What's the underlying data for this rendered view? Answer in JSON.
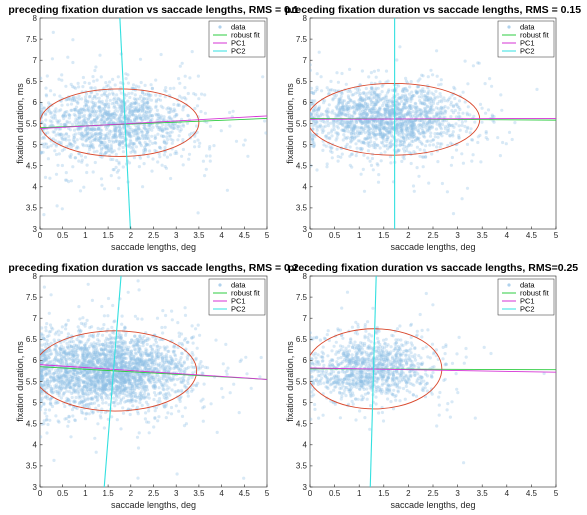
{
  "chart_data": [
    {
      "type": "scatter",
      "title": "preceding fixation duration vs saccade lengths, RMS = 0.1",
      "xlabel": "saccade lengths, deg",
      "ylabel": "fixation duration, ms",
      "xlim": [
        0,
        5
      ],
      "ylim": [
        3,
        8
      ],
      "xticks": [
        "0",
        "0.5",
        "1",
        "1.5",
        "2",
        "2.5",
        "3",
        "3.5",
        "4",
        "4.5",
        "5"
      ],
      "yticks": [
        "3",
        "3.5",
        "4",
        "4.5",
        "5",
        "5.5",
        "6",
        "6.5",
        "7",
        "7.5",
        "8"
      ],
      "grid": false,
      "legend": "top-right",
      "legend_entries": [
        "data",
        "robust fit",
        "PC1",
        "PC2"
      ],
      "cloud": {
        "cx": 1.7,
        "cy": 5.5,
        "sx": 0.85,
        "sy": 0.45,
        "n": 1400
      },
      "ellipse": {
        "cx": 1.75,
        "cy": 5.52,
        "rx": 1.75,
        "ry": 0.8
      },
      "robust_fit": {
        "x": [
          0,
          5
        ],
        "y": [
          5.4,
          5.62
        ]
      },
      "pc1": {
        "x": [
          0,
          5
        ],
        "y": [
          5.38,
          5.68
        ]
      },
      "pc2": {
        "x": [
          1.75,
          2.0
        ],
        "y": [
          8.2,
          2.8
        ]
      },
      "series_colors": {
        "data": "#8fbfe6",
        "robust_fit": "#2ecc40",
        "pc1": "#d633d6",
        "pc2": "#33e0e0",
        "ellipse": "#d9472b"
      }
    },
    {
      "type": "scatter",
      "title": "preceding fixation duration vs saccade lengths, RMS = 0.15",
      "xlabel": "saccade lengths, deg",
      "ylabel": "fixation duration, ms",
      "xlim": [
        0,
        5
      ],
      "ylim": [
        3,
        8
      ],
      "xticks": [
        "0",
        "0.5",
        "1",
        "1.5",
        "2",
        "2.5",
        "3",
        "3.5",
        "4",
        "4.5",
        "5"
      ],
      "yticks": [
        "3",
        "3.5",
        "4",
        "4.5",
        "5",
        "5.5",
        "6",
        "6.5",
        "7",
        "7.5",
        "8"
      ],
      "grid": false,
      "legend": "top-right",
      "legend_entries": [
        "data",
        "robust fit",
        "PC1",
        "PC2"
      ],
      "cloud": {
        "cx": 1.6,
        "cy": 5.6,
        "sx": 0.8,
        "sy": 0.42,
        "n": 1700
      },
      "ellipse": {
        "cx": 1.7,
        "cy": 5.6,
        "rx": 1.75,
        "ry": 0.85
      },
      "robust_fit": {
        "x": [
          0,
          5
        ],
        "y": [
          5.62,
          5.58
        ]
      },
      "pc1": {
        "x": [
          0,
          5
        ],
        "y": [
          5.6,
          5.62
        ]
      },
      "pc2": {
        "x": [
          1.72,
          1.72
        ],
        "y": [
          8.2,
          2.8
        ]
      },
      "series_colors": {
        "data": "#8fbfe6",
        "robust_fit": "#2ecc40",
        "pc1": "#d633d6",
        "pc2": "#33e0e0",
        "ellipse": "#d9472b"
      }
    },
    {
      "type": "scatter",
      "title": "preceding fixation duration vs saccade lengths, RMS = 0.2",
      "xlabel": "saccade lengths, deg",
      "ylabel": "fixation duration, ms",
      "xlim": [
        0,
        5
      ],
      "ylim": [
        3,
        8
      ],
      "xticks": [
        "0",
        "0.5",
        "1",
        "1.5",
        "2",
        "2.5",
        "3",
        "3.5",
        "4",
        "4.5",
        "5"
      ],
      "yticks": [
        "3",
        "3.5",
        "4",
        "4.5",
        "5",
        "5.5",
        "6",
        "6.5",
        "7",
        "7.5",
        "8"
      ],
      "grid": false,
      "legend": "top-right",
      "legend_entries": [
        "data",
        "robust fit",
        "PC1",
        "PC2"
      ],
      "cloud": {
        "cx": 1.5,
        "cy": 5.75,
        "sx": 0.9,
        "sy": 0.45,
        "n": 2600
      },
      "ellipse": {
        "cx": 1.65,
        "cy": 5.75,
        "rx": 1.8,
        "ry": 0.95
      },
      "robust_fit": {
        "x": [
          0,
          5
        ],
        "y": [
          5.85,
          5.55
        ]
      },
      "pc1": {
        "x": [
          0,
          5
        ],
        "y": [
          5.9,
          5.55
        ]
      },
      "pc2": {
        "x": [
          1.8,
          1.4
        ],
        "y": [
          8.2,
          2.8
        ]
      },
      "series_colors": {
        "data": "#8fbfe6",
        "robust_fit": "#2ecc40",
        "pc1": "#d633d6",
        "pc2": "#33e0e0",
        "ellipse": "#d9472b"
      }
    },
    {
      "type": "scatter",
      "title": "preceding fixation duration vs saccade lengths, RMS=0.25",
      "xlabel": "saccade lengths, deg",
      "ylabel": "fixation duration, ms",
      "xlim": [
        0,
        5
      ],
      "ylim": [
        3,
        8
      ],
      "xticks": [
        "0",
        "0.5",
        "1",
        "1.5",
        "2",
        "2.5",
        "3",
        "3.5",
        "4",
        "4.5",
        "5"
      ],
      "yticks": [
        "3",
        "3.5",
        "4",
        "4.5",
        "5",
        "5.5",
        "6",
        "6.5",
        "7",
        "7.5",
        "8"
      ],
      "grid": false,
      "legend": "top-right",
      "legend_entries": [
        "data",
        "robust fit",
        "PC1",
        "PC2"
      ],
      "cloud": {
        "cx": 1.25,
        "cy": 5.8,
        "sx": 0.65,
        "sy": 0.4,
        "n": 1100
      },
      "ellipse": {
        "cx": 1.3,
        "cy": 5.8,
        "rx": 1.38,
        "ry": 0.95
      },
      "robust_fit": {
        "x": [
          0,
          5
        ],
        "y": [
          5.8,
          5.78
        ]
      },
      "pc1": {
        "x": [
          0,
          5
        ],
        "y": [
          5.82,
          5.72
        ]
      },
      "pc2": {
        "x": [
          1.35,
          1.22
        ],
        "y": [
          8.2,
          2.8
        ]
      },
      "series_colors": {
        "data": "#8fbfe6",
        "robust_fit": "#2ecc40",
        "pc1": "#d633d6",
        "pc2": "#33e0e0",
        "ellipse": "#d9472b"
      }
    }
  ]
}
